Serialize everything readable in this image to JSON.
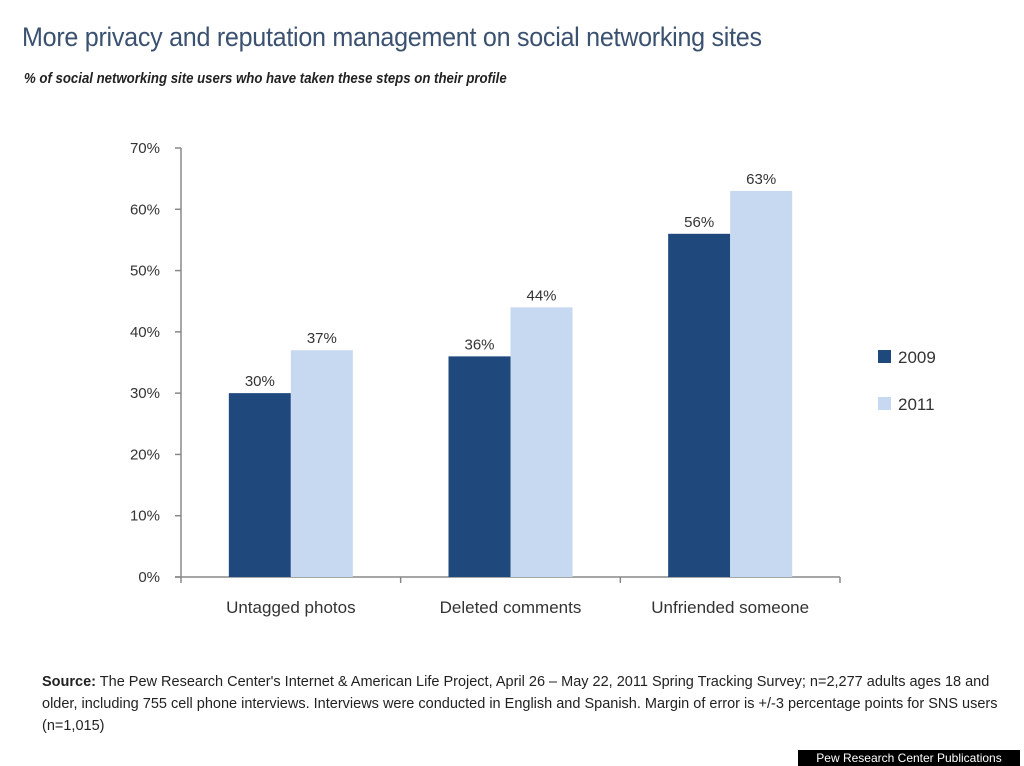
{
  "chart_data": {
    "type": "bar",
    "title": "More privacy and reputation management on social networking sites",
    "subtitle": "% of social networking site users who have taken these steps on their profile",
    "xlabel": "",
    "ylabel": "",
    "categories": [
      "Untagged photos",
      "Deleted comments",
      "Unfriended someone"
    ],
    "series": [
      {
        "name": "2009",
        "values": [
          30,
          36,
          56
        ],
        "labels": [
          "30%",
          "36%",
          "56%"
        ],
        "color": "#1f497d"
      },
      {
        "name": "2011",
        "values": [
          37,
          44,
          63
        ],
        "labels": [
          "37%",
          "44%",
          "63%"
        ],
        "color": "#c6d9f1"
      }
    ],
    "ylim": [
      0,
      70
    ],
    "yticks": [
      0,
      10,
      20,
      30,
      40,
      50,
      60,
      70
    ],
    "ytick_labels": [
      "0%",
      "10%",
      "20%",
      "30%",
      "40%",
      "50%",
      "60%",
      "70%"
    ],
    "grid": false,
    "legend_position": "right"
  },
  "source": {
    "label": "Source:",
    "text": "The Pew Research Center's Internet & American Life Project, April 26 – May 22, 2011 Spring Tracking Survey; n=2,277 adults ages 18 and older, including 755 cell phone interviews. Interviews were conducted in English and Spanish. Margin of error is +/-3 percentage points for SNS users (n=1,015)"
  },
  "credit": "Pew Research Center Publications"
}
